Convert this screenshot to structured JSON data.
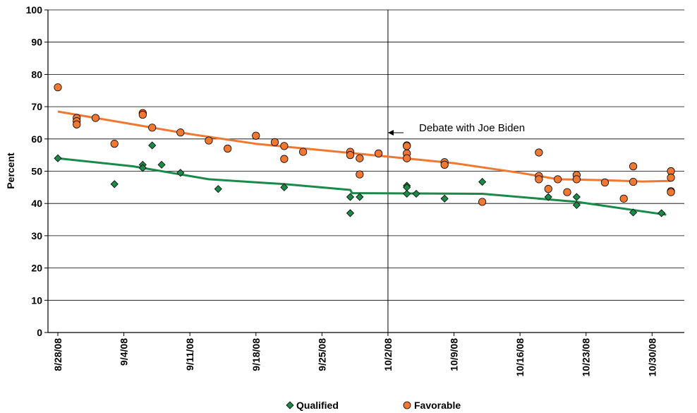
{
  "chart_data": {
    "type": "scatter",
    "title": "",
    "xlabel": "",
    "ylabel": "Percent",
    "ylim": [
      0,
      100
    ],
    "y_ticks": [
      "0",
      "10",
      "20",
      "30",
      "40",
      "50",
      "60",
      "70",
      "80",
      "90",
      "100"
    ],
    "x_ticks": [
      {
        "label": "8/28/08",
        "day": 0
      },
      {
        "label": "9/4/08",
        "day": 7
      },
      {
        "label": "9/11/08",
        "day": 14
      },
      {
        "label": "9/18/08",
        "day": 21
      },
      {
        "label": "9/25/08",
        "day": 28
      },
      {
        "label": "10/2/08",
        "day": 35
      },
      {
        "label": "10/9/08",
        "day": 42
      },
      {
        "label": "10/16/08",
        "day": 49
      },
      {
        "label": "10/23/08",
        "day": 56
      },
      {
        "label": "10/30/08",
        "day": 63
      }
    ],
    "xlim_days": [
      0,
      67
    ],
    "grid": true,
    "legend_position": "bottom",
    "annotation": {
      "text": "Debate with Joe Biden",
      "day": 35
    },
    "series": [
      {
        "name": "Qualified",
        "marker": "diamond",
        "color": "#1a8a4a",
        "points": [
          [
            0.0,
            54
          ],
          [
            6.0,
            46
          ],
          [
            9.0,
            52
          ],
          [
            9.0,
            51
          ],
          [
            10.0,
            58
          ],
          [
            11.0,
            52
          ],
          [
            13.0,
            49.5
          ],
          [
            17.0,
            44.5
          ],
          [
            24.0,
            45
          ],
          [
            31.0,
            42
          ],
          [
            31.0,
            37
          ],
          [
            32.0,
            42
          ],
          [
            37.0,
            45.5
          ],
          [
            37.0,
            45
          ],
          [
            37.0,
            43
          ],
          [
            38.0,
            43
          ],
          [
            41.0,
            41.5
          ],
          [
            45.0,
            46.7
          ],
          [
            52.0,
            42
          ],
          [
            55.0,
            42
          ],
          [
            55.0,
            39.5
          ],
          [
            61.0,
            37.2
          ],
          [
            64.0,
            37
          ]
        ],
        "trend": [
          [
            0.0,
            54
          ],
          [
            8.0,
            51.5
          ],
          [
            16.0,
            47.5
          ],
          [
            24.0,
            46
          ],
          [
            31.0,
            44.2
          ],
          [
            31.2,
            43.2
          ],
          [
            45.0,
            43
          ],
          [
            55.0,
            40.5
          ],
          [
            64.5,
            36.5
          ]
        ]
      },
      {
        "name": "Favorable",
        "marker": "circle",
        "color": "#f07830",
        "points": [
          [
            0.0,
            76
          ],
          [
            2.0,
            66.5
          ],
          [
            2.0,
            65.5
          ],
          [
            2.0,
            64.5
          ],
          [
            4.0,
            66.5
          ],
          [
            6.0,
            58.5
          ],
          [
            9.0,
            68
          ],
          [
            9.0,
            67.5
          ],
          [
            10.0,
            63.5
          ],
          [
            13.0,
            62
          ],
          [
            16.0,
            59.5
          ],
          [
            18.0,
            57
          ],
          [
            21.0,
            61
          ],
          [
            23.0,
            59
          ],
          [
            24.0,
            57.8
          ],
          [
            24.0,
            53.8
          ],
          [
            26.0,
            56
          ],
          [
            31.0,
            56
          ],
          [
            31.0,
            55
          ],
          [
            32.0,
            54
          ],
          [
            32.0,
            49
          ],
          [
            34.0,
            55.5
          ],
          [
            37.0,
            58
          ],
          [
            37.0,
            57.8
          ],
          [
            37.0,
            55.5
          ],
          [
            37.0,
            54
          ],
          [
            41.0,
            52.8
          ],
          [
            41.0,
            52
          ],
          [
            45.0,
            40.5
          ],
          [
            51.0,
            55.8
          ],
          [
            51.0,
            48.5
          ],
          [
            51.0,
            47.5
          ],
          [
            52.0,
            44.5
          ],
          [
            53.0,
            47.5
          ],
          [
            54.0,
            43.5
          ],
          [
            55.0,
            48.8
          ],
          [
            55.0,
            47.5
          ],
          [
            58.0,
            46.5
          ],
          [
            60.0,
            41.5
          ],
          [
            61.0,
            51.5
          ],
          [
            61.0,
            46.7
          ],
          [
            65.0,
            50
          ],
          [
            65.0,
            48
          ],
          [
            65.0,
            43.8
          ],
          [
            65.0,
            43.5
          ]
        ],
        "trend": [
          [
            0.0,
            68.5
          ],
          [
            7.0,
            65
          ],
          [
            14.0,
            61.5
          ],
          [
            21.0,
            58.5
          ],
          [
            28.0,
            56.5
          ],
          [
            35.0,
            54.5
          ],
          [
            42.0,
            52.5
          ],
          [
            49.0,
            49.5
          ],
          [
            53.0,
            47.5
          ],
          [
            58.0,
            47.2
          ],
          [
            62.0,
            46.8
          ],
          [
            65.0,
            47
          ]
        ]
      }
    ]
  }
}
